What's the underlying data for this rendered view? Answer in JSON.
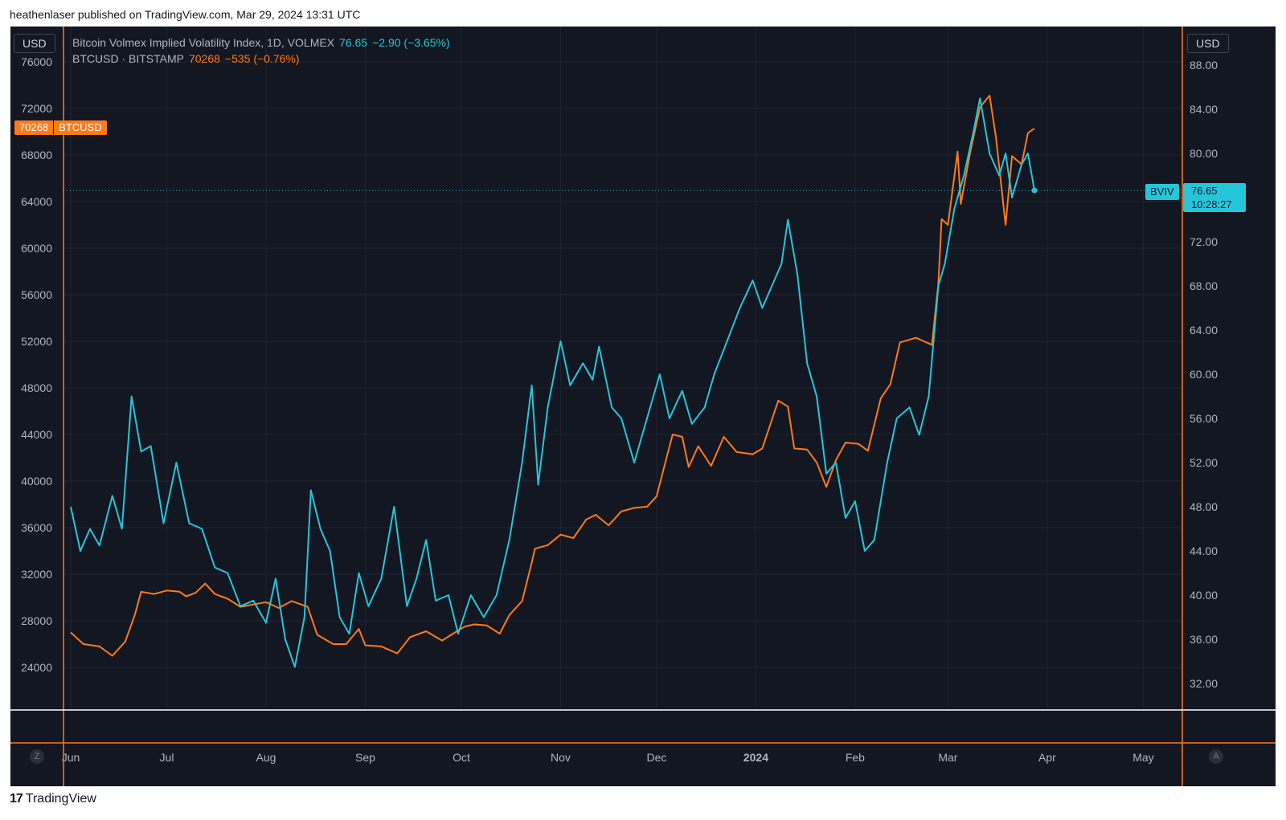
{
  "header": {
    "published": "heathenlaser published on TradingView.com, Mar 29, 2024 13:31 UTC"
  },
  "currency": {
    "left": "USD",
    "right": "USD"
  },
  "legend": {
    "bviv": {
      "name": "Bitcoin Volmex Implied Volatility Index, 1D, VOLMEX",
      "value": "76.65",
      "change": "−2.90 (−3.65%)"
    },
    "btc": {
      "name": "BTCUSD · BITSTAMP",
      "value": "70268",
      "change": "−535 (−0.76%)"
    }
  },
  "badges": {
    "btc_value": "70268",
    "btc_name": "BTCUSD",
    "bviv_tag": "BVIV",
    "bviv_value": "76.65",
    "bviv_countdown": "10:28:27"
  },
  "axis_buttons": {
    "left": "Z",
    "right": "A"
  },
  "brand": {
    "name": "TradingView",
    "logo": "17"
  },
  "colors": {
    "background": "#131722",
    "bviv": "#26c6da",
    "btc": "#ff7a1a",
    "grid": "#1f2431",
    "axis_text": "#b2b5be"
  },
  "chart_data": {
    "type": "line",
    "x_ticks": [
      "Jun",
      "Jul",
      "Aug",
      "Sep",
      "Oct",
      "Nov",
      "Dec",
      "2024",
      "Feb",
      "Mar",
      "Apr",
      "May"
    ],
    "y_left": {
      "series": "BTCUSD",
      "ticks": [
        24000,
        28000,
        32000,
        36000,
        40000,
        44000,
        48000,
        52000,
        56000,
        60000,
        64000,
        68000,
        72000,
        76000
      ]
    },
    "y_right": {
      "series": "BVIV",
      "ticks": [
        32,
        36,
        40,
        44,
        48,
        52,
        56,
        60,
        64,
        68,
        72,
        76,
        80,
        84,
        88
      ]
    },
    "series": [
      {
        "name": "BTCUSD",
        "axis": "left",
        "color": "#ff7a1a",
        "points": [
          [
            "2023-06-01",
            27000
          ],
          [
            "2023-06-05",
            26000
          ],
          [
            "2023-06-10",
            25800
          ],
          [
            "2023-06-14",
            25000
          ],
          [
            "2023-06-18",
            26200
          ],
          [
            "2023-06-21",
            28500
          ],
          [
            "2023-06-23",
            30500
          ],
          [
            "2023-06-27",
            30300
          ],
          [
            "2023-07-01",
            30600
          ],
          [
            "2023-07-05",
            30500
          ],
          [
            "2023-07-07",
            30100
          ],
          [
            "2023-07-10",
            30400
          ],
          [
            "2023-07-13",
            31200
          ],
          [
            "2023-07-16",
            30300
          ],
          [
            "2023-07-20",
            29900
          ],
          [
            "2023-07-24",
            29200
          ],
          [
            "2023-07-28",
            29400
          ],
          [
            "2023-08-01",
            29600
          ],
          [
            "2023-08-05",
            29100
          ],
          [
            "2023-08-09",
            29700
          ],
          [
            "2023-08-14",
            29200
          ],
          [
            "2023-08-17",
            26800
          ],
          [
            "2023-08-22",
            26000
          ],
          [
            "2023-08-26",
            26000
          ],
          [
            "2023-08-30",
            27300
          ],
          [
            "2023-09-01",
            25900
          ],
          [
            "2023-09-06",
            25800
          ],
          [
            "2023-09-11",
            25200
          ],
          [
            "2023-09-15",
            26600
          ],
          [
            "2023-09-20",
            27100
          ],
          [
            "2023-09-25",
            26300
          ],
          [
            "2023-09-29",
            27000
          ],
          [
            "2023-10-02",
            27500
          ],
          [
            "2023-10-05",
            27700
          ],
          [
            "2023-10-09",
            27600
          ],
          [
            "2023-10-13",
            26900
          ],
          [
            "2023-10-16",
            28500
          ],
          [
            "2023-10-20",
            29700
          ],
          [
            "2023-10-23",
            33000
          ],
          [
            "2023-10-24",
            34200
          ],
          [
            "2023-10-28",
            34500
          ],
          [
            "2023-11-01",
            35400
          ],
          [
            "2023-11-05",
            35100
          ],
          [
            "2023-11-09",
            36700
          ],
          [
            "2023-11-12",
            37100
          ],
          [
            "2023-11-16",
            36200
          ],
          [
            "2023-11-20",
            37400
          ],
          [
            "2023-11-24",
            37700
          ],
          [
            "2023-11-28",
            37800
          ],
          [
            "2023-12-01",
            38700
          ],
          [
            "2023-12-04",
            41900
          ],
          [
            "2023-12-06",
            44000
          ],
          [
            "2023-12-09",
            43800
          ],
          [
            "2023-12-11",
            41200
          ],
          [
            "2023-12-14",
            43000
          ],
          [
            "2023-12-18",
            41300
          ],
          [
            "2023-12-22",
            43800
          ],
          [
            "2023-12-26",
            42500
          ],
          [
            "2023-12-31",
            42300
          ],
          [
            "2024-01-03",
            42800
          ],
          [
            "2024-01-08",
            46900
          ],
          [
            "2024-01-11",
            46400
          ],
          [
            "2024-01-13",
            42800
          ],
          [
            "2024-01-17",
            42700
          ],
          [
            "2024-01-20",
            41600
          ],
          [
            "2024-01-23",
            39500
          ],
          [
            "2024-01-26",
            41800
          ],
          [
            "2024-01-29",
            43300
          ],
          [
            "2024-02-02",
            43200
          ],
          [
            "2024-02-05",
            42600
          ],
          [
            "2024-02-09",
            47100
          ],
          [
            "2024-02-12",
            48300
          ],
          [
            "2024-02-15",
            51900
          ],
          [
            "2024-02-20",
            52300
          ],
          [
            "2024-02-25",
            51700
          ],
          [
            "2024-02-27",
            57000
          ],
          [
            "2024-02-28",
            62500
          ],
          [
            "2024-03-01",
            62000
          ],
          [
            "2024-03-04",
            68300
          ],
          [
            "2024-03-05",
            63800
          ],
          [
            "2024-03-08",
            68300
          ],
          [
            "2024-03-11",
            72100
          ],
          [
            "2024-03-14",
            73100
          ],
          [
            "2024-03-16",
            69500
          ],
          [
            "2024-03-19",
            62000
          ],
          [
            "2024-03-21",
            67900
          ],
          [
            "2024-03-24",
            67200
          ],
          [
            "2024-03-26",
            69900
          ],
          [
            "2024-03-28",
            70268
          ]
        ]
      },
      {
        "name": "BVIV",
        "axis": "right",
        "color": "#26c6da",
        "points": [
          [
            "2023-06-01",
            48
          ],
          [
            "2023-06-04",
            44
          ],
          [
            "2023-06-07",
            46
          ],
          [
            "2023-06-10",
            44.5
          ],
          [
            "2023-06-14",
            49
          ],
          [
            "2023-06-17",
            46
          ],
          [
            "2023-06-20",
            58
          ],
          [
            "2023-06-23",
            53
          ],
          [
            "2023-06-26",
            53.5
          ],
          [
            "2023-06-30",
            46.5
          ],
          [
            "2023-07-04",
            52
          ],
          [
            "2023-07-08",
            46.5
          ],
          [
            "2023-07-12",
            46
          ],
          [
            "2023-07-16",
            42.5
          ],
          [
            "2023-07-20",
            42
          ],
          [
            "2023-07-24",
            39
          ],
          [
            "2023-07-28",
            39.5
          ],
          [
            "2023-08-01",
            37.5
          ],
          [
            "2023-08-04",
            41.5
          ],
          [
            "2023-08-07",
            36
          ],
          [
            "2023-08-10",
            33.5
          ],
          [
            "2023-08-13",
            38
          ],
          [
            "2023-08-15",
            49.5
          ],
          [
            "2023-08-18",
            46
          ],
          [
            "2023-08-21",
            44
          ],
          [
            "2023-08-24",
            38
          ],
          [
            "2023-08-27",
            36.5
          ],
          [
            "2023-08-30",
            42
          ],
          [
            "2023-09-02",
            39
          ],
          [
            "2023-09-06",
            41.5
          ],
          [
            "2023-09-10",
            48
          ],
          [
            "2023-09-14",
            39
          ],
          [
            "2023-09-17",
            41.5
          ],
          [
            "2023-09-20",
            45
          ],
          [
            "2023-09-23",
            39.5
          ],
          [
            "2023-09-27",
            40
          ],
          [
            "2023-09-30",
            36.5
          ],
          [
            "2023-10-04",
            40
          ],
          [
            "2023-10-08",
            38
          ],
          [
            "2023-10-12",
            40
          ],
          [
            "2023-10-16",
            45
          ],
          [
            "2023-10-20",
            52
          ],
          [
            "2023-10-23",
            59
          ],
          [
            "2023-10-25",
            50
          ],
          [
            "2023-10-28",
            57
          ],
          [
            "2023-11-01",
            63
          ],
          [
            "2023-11-04",
            59
          ],
          [
            "2023-11-08",
            61
          ],
          [
            "2023-11-11",
            59.5
          ],
          [
            "2023-11-13",
            62.5
          ],
          [
            "2023-11-17",
            57
          ],
          [
            "2023-11-20",
            56
          ],
          [
            "2023-11-24",
            52
          ],
          [
            "2023-11-28",
            56
          ],
          [
            "2023-12-02",
            60
          ],
          [
            "2023-12-05",
            56
          ],
          [
            "2023-12-09",
            58.5
          ],
          [
            "2023-12-12",
            55.5
          ],
          [
            "2023-12-16",
            57
          ],
          [
            "2023-12-19",
            60
          ],
          [
            "2023-12-23",
            63
          ],
          [
            "2023-12-27",
            66
          ],
          [
            "2023-12-31",
            68.5
          ],
          [
            "2024-01-03",
            66
          ],
          [
            "2024-01-06",
            68
          ],
          [
            "2024-01-09",
            70
          ],
          [
            "2024-01-11",
            74
          ],
          [
            "2024-01-14",
            69
          ],
          [
            "2024-01-17",
            61
          ],
          [
            "2024-01-20",
            58
          ],
          [
            "2024-01-23",
            51
          ],
          [
            "2024-01-26",
            52
          ],
          [
            "2024-01-29",
            47
          ],
          [
            "2024-02-01",
            48.5
          ],
          [
            "2024-02-04",
            44
          ],
          [
            "2024-02-07",
            45
          ],
          [
            "2024-02-11",
            52
          ],
          [
            "2024-02-14",
            56
          ],
          [
            "2024-02-18",
            57
          ],
          [
            "2024-02-21",
            54.5
          ],
          [
            "2024-02-24",
            58
          ],
          [
            "2024-02-27",
            68
          ],
          [
            "2024-02-29",
            70
          ],
          [
            "2024-03-03",
            75
          ],
          [
            "2024-03-06",
            78
          ],
          [
            "2024-03-09",
            82
          ],
          [
            "2024-03-11",
            85
          ],
          [
            "2024-03-14",
            80
          ],
          [
            "2024-03-17",
            78
          ],
          [
            "2024-03-19",
            80
          ],
          [
            "2024-03-21",
            76
          ],
          [
            "2024-03-24",
            79
          ],
          [
            "2024-03-26",
            80
          ],
          [
            "2024-03-28",
            76.65
          ]
        ]
      }
    ]
  }
}
